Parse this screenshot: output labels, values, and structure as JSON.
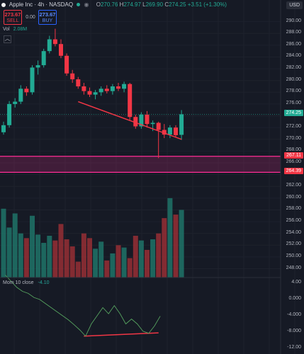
{
  "header": {
    "symbol_title": "Apple Inc · 4h · NASDAQ",
    "ohlc": {
      "o_label": "O",
      "o": "270.76",
      "h_label": "H",
      "h": "274.97",
      "l_label": "L",
      "l": "269.90",
      "c_label": "C",
      "c": "274.25",
      "change": "+3.51 (+1.30%)"
    },
    "currency": "USD"
  },
  "trade": {
    "sell_price": "273.67",
    "sell_label": "SELL",
    "spread": "0.00",
    "buy_price": "273.67",
    "buy_label": "BUY"
  },
  "volume": {
    "label": "Vol",
    "value": "2.08M"
  },
  "indicator": {
    "name": "Mom 10 close",
    "value": "-4.10"
  },
  "price_axis": [
    "290.00",
    "288.00",
    "286.00",
    "284.00",
    "282.00",
    "280.00",
    "278.00",
    "276.00",
    "272.00",
    "270.00",
    "268.00",
    "266.00",
    "262.00",
    "260.00",
    "258.00",
    "256.00",
    "254.00",
    "252.00",
    "250.00",
    "248.00"
  ],
  "indicator_axis": [
    "4.00",
    "0.000",
    "-4.000",
    "-8.000",
    "-12.00"
  ],
  "price_tags": [
    {
      "label": "274.25",
      "color": "#22ab94",
      "price": 274.25
    },
    {
      "label": "267.11",
      "color": "#f23645",
      "price": 267.11
    },
    {
      "label": "264.39",
      "color": "#f23645",
      "price": 264.39
    }
  ],
  "chart_data": {
    "type": "candlestick",
    "colors": {
      "up": "#22ab94",
      "down": "#f23645",
      "zone": "#ff2d95"
    },
    "candles": [
      {
        "o": 271.2,
        "h": 273.0,
        "l": 270.8,
        "c": 272.4
      },
      {
        "o": 272.4,
        "h": 276.5,
        "l": 272.0,
        "c": 276.0
      },
      {
        "o": 276.0,
        "h": 277.0,
        "l": 275.4,
        "c": 276.4
      },
      {
        "o": 276.4,
        "h": 279.2,
        "l": 276.0,
        "c": 278.6
      },
      {
        "o": 278.6,
        "h": 279.0,
        "l": 277.4,
        "c": 278.0
      },
      {
        "o": 278.0,
        "h": 282.6,
        "l": 277.6,
        "c": 282.2
      },
      {
        "o": 282.2,
        "h": 283.4,
        "l": 281.0,
        "c": 282.6
      },
      {
        "o": 282.6,
        "h": 285.4,
        "l": 282.2,
        "c": 285.0
      },
      {
        "o": 285.0,
        "h": 287.6,
        "l": 284.6,
        "c": 287.0
      },
      {
        "o": 287.0,
        "h": 288.8,
        "l": 285.8,
        "c": 286.2
      },
      {
        "o": 286.2,
        "h": 287.0,
        "l": 283.8,
        "c": 284.2
      },
      {
        "o": 284.2,
        "h": 284.6,
        "l": 280.8,
        "c": 281.2
      },
      {
        "o": 281.2,
        "h": 281.8,
        "l": 279.6,
        "c": 280.2
      },
      {
        "o": 280.2,
        "h": 280.6,
        "l": 278.6,
        "c": 279.0
      },
      {
        "o": 279.0,
        "h": 279.6,
        "l": 277.6,
        "c": 278.2
      },
      {
        "o": 278.2,
        "h": 278.8,
        "l": 277.2,
        "c": 277.6
      },
      {
        "o": 277.6,
        "h": 278.4,
        "l": 276.8,
        "c": 278.0
      },
      {
        "o": 278.0,
        "h": 279.0,
        "l": 277.4,
        "c": 278.6
      },
      {
        "o": 278.6,
        "h": 279.2,
        "l": 277.8,
        "c": 278.2
      },
      {
        "o": 278.2,
        "h": 279.4,
        "l": 277.6,
        "c": 279.0
      },
      {
        "o": 279.0,
        "h": 279.6,
        "l": 278.2,
        "c": 278.6
      },
      {
        "o": 278.6,
        "h": 279.8,
        "l": 278.0,
        "c": 279.4
      },
      {
        "o": 279.4,
        "h": 279.6,
        "l": 273.2,
        "c": 273.8
      },
      {
        "o": 273.8,
        "h": 274.2,
        "l": 271.8,
        "c": 272.2
      },
      {
        "o": 272.2,
        "h": 274.6,
        "l": 271.8,
        "c": 274.2
      },
      {
        "o": 274.2,
        "h": 274.8,
        "l": 272.0,
        "c": 272.6
      },
      {
        "o": 272.6,
        "h": 273.2,
        "l": 271.4,
        "c": 272.8
      },
      {
        "o": 272.8,
        "h": 273.0,
        "l": 266.8,
        "c": 271.6
      },
      {
        "o": 271.6,
        "h": 272.6,
        "l": 270.2,
        "c": 270.8
      },
      {
        "o": 270.8,
        "h": 272.4,
        "l": 270.2,
        "c": 272.0
      },
      {
        "o": 272.0,
        "h": 272.4,
        "l": 270.4,
        "c": 270.7
      },
      {
        "o": 270.76,
        "h": 274.97,
        "l": 269.9,
        "c": 274.25
      }
    ],
    "volume_scale": [
      248,
      264
    ],
    "volume": [
      258.2,
      255.0,
      257.4,
      254.0,
      253.2,
      257.0,
      253.8,
      252.4,
      253.6,
      252.8,
      255.6,
      253.0,
      251.8,
      249.2,
      254.0,
      253.2,
      251.4,
      252.6,
      249.4,
      250.6,
      252.0,
      251.6,
      249.8,
      253.6,
      252.8,
      251.2,
      253.0,
      254.0,
      256.6,
      260.0,
      257.2,
      258.0
    ],
    "momentum": [
      6.0,
      4.5,
      3.0,
      2.0,
      1.5,
      0.5,
      0.0,
      -1.0,
      -2.0,
      -3.0,
      -4.0,
      -5.0,
      -6.2,
      -7.5,
      -9.0,
      -6.0,
      -4.0,
      -2.0,
      -3.5,
      -1.5,
      -3.5,
      -6.0,
      -4.8,
      -6.0,
      -7.8,
      -8.3,
      -6.5,
      -4.1
    ],
    "momentum_range": [
      -12,
      4
    ],
    "price_range": [
      246.5,
      292.0
    ],
    "trendlines": [
      {
        "pane": "price",
        "from": [
          13,
          276.4
        ],
        "to": [
          31,
          270.0
        ]
      },
      {
        "pane": "momentum",
        "from": [
          14,
          -9.0
        ],
        "to": [
          27,
          -8.2
        ]
      }
    ],
    "zones": [
      {
        "top": 267.11,
        "bottom": 264.39
      }
    ]
  }
}
